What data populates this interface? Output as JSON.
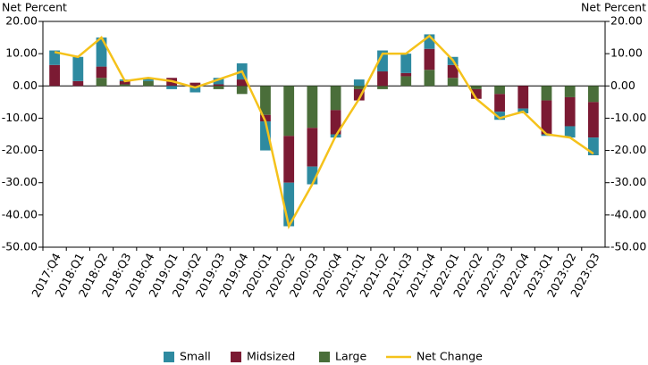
{
  "chart_data": {
    "type": "stacked_bar_line",
    "y_label": "Net Percent",
    "y2_label": "Net Percent",
    "categories": [
      "2017:Q4",
      "2018:Q1",
      "2018:Q2",
      "2018:Q3",
      "2018:Q4",
      "2019:Q1",
      "2019:Q2",
      "2019:Q3",
      "2019:Q4",
      "2020:Q1",
      "2020:Q2",
      "2020:Q3",
      "2020:Q4",
      "2021:Q1",
      "2021:Q2",
      "2021:Q3",
      "2021:Q4",
      "2022:Q1",
      "2022:Q2",
      "2022:Q3",
      "2022:Q4",
      "2023:Q1",
      "2023:Q2",
      "2023:Q3"
    ],
    "series": [
      {
        "name": "Small",
        "color": "#2e8aa0",
        "type": "bar",
        "values": [
          4.5,
          7.5,
          9,
          0.5,
          1,
          -1,
          -1.5,
          2,
          5,
          -9,
          -13.5,
          -5.5,
          -1,
          2,
          6.5,
          6,
          4.5,
          2.5,
          0,
          -2.5,
          -1.5,
          -0.5,
          -3.5,
          -5.5
        ]
      },
      {
        "name": "Midsized",
        "color": "#7b1a33",
        "type": "bar",
        "values": [
          6.5,
          1.5,
          3.5,
          1,
          0,
          2.5,
          1,
          0.5,
          2,
          -2,
          -14.5,
          -12,
          -7.5,
          -3.5,
          4.5,
          1,
          6.5,
          4,
          -3,
          -5.5,
          -7,
          -10.5,
          -9,
          -11
        ]
      },
      {
        "name": "Large",
        "color": "#4a6e3a",
        "type": "bar",
        "values": [
          0,
          0,
          2.5,
          0.5,
          1.5,
          0,
          -0.5,
          -1,
          -2.5,
          -9,
          -15.5,
          -13,
          -7.5,
          -1,
          -1,
          3,
          5,
          2.5,
          -1,
          -2.5,
          0,
          -4.5,
          -3.5,
          -5
        ]
      },
      {
        "name": "Net Change",
        "color": "#f5c21b",
        "type": "line",
        "values": [
          10.5,
          9,
          15,
          1.5,
          2.5,
          1.5,
          -0.5,
          2,
          4.5,
          -11,
          -43.5,
          -30.5,
          -15.5,
          -4,
          10,
          10,
          15.5,
          8,
          -4,
          -10,
          -8,
          -15,
          -16,
          -21
        ]
      }
    ],
    "ylim": [
      -50,
      20
    ],
    "y2lim": [
      -50,
      20
    ],
    "yticks": [
      {
        "value": 20,
        "label": "20.00"
      },
      {
        "value": 10,
        "label": "10.00"
      },
      {
        "value": 0,
        "label": "0.00"
      },
      {
        "value": -10,
        "label": "-10.00"
      },
      {
        "value": -20,
        "label": "-20.00"
      },
      {
        "value": -30,
        "label": "-30.00"
      },
      {
        "value": -40,
        "label": "-40.00"
      },
      {
        "value": -50,
        "label": "-50.00"
      }
    ],
    "y2ticks": [
      {
        "value": 20,
        "label": "20.00"
      },
      {
        "value": 10,
        "label": "10.00"
      },
      {
        "value": 0,
        "label": "0.00"
      },
      {
        "value": -10,
        "label": "-10.00"
      },
      {
        "value": -20,
        "label": "-20.00"
      },
      {
        "value": -30,
        "label": "-30.00"
      },
      {
        "value": -40,
        "label": "-40.00"
      },
      {
        "value": -50,
        "label": "-50.00"
      }
    ],
    "grid": false,
    "legend": "bottom"
  }
}
